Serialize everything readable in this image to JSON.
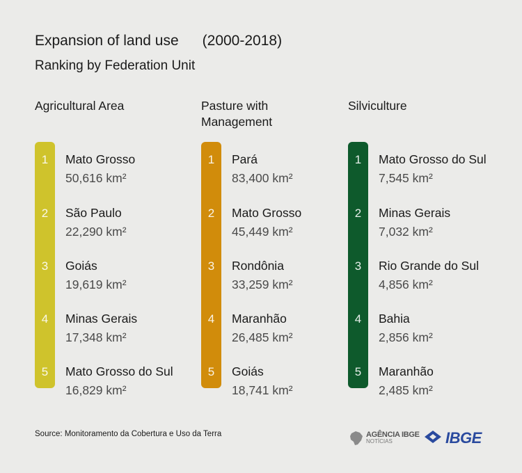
{
  "title": "Expansion of land use",
  "period": "(2000-2018)",
  "subtitle": "Ranking by Federation Unit",
  "chart_data": {
    "type": "table",
    "title": "Expansion of land use (2000-2018)",
    "subtitle": "Ranking by Federation Unit",
    "columns": [
      {
        "heading_lines": [
          "Agricultural Area"
        ],
        "color": "#cfc32c",
        "items": [
          {
            "rank": "1",
            "name": "Mato Grosso",
            "value": 50616,
            "value_text": "50,616 km²"
          },
          {
            "rank": "2",
            "name": "São Paulo",
            "value": 22290,
            "value_text": "22,290 km²"
          },
          {
            "rank": "3",
            "name": "Goiás",
            "value": 19619,
            "value_text": "19,619 km²"
          },
          {
            "rank": "4",
            "name": "Minas Gerais",
            "value": 17348,
            "value_text": "17,348 km²"
          },
          {
            "rank": "5",
            "name": "Mato Grosso do Sul",
            "value": 16829,
            "value_text": "16,829 km²"
          }
        ]
      },
      {
        "heading_lines": [
          "Pasture with",
          "Management"
        ],
        "color": "#d18c0b",
        "items": [
          {
            "rank": "1",
            "name": "Pará",
            "value": 83400,
            "value_text": "83,400 km²"
          },
          {
            "rank": "2",
            "name": "Mato Grosso",
            "value": 45449,
            "value_text": "45,449 km²"
          },
          {
            "rank": "3",
            "name": "Rondônia",
            "value": 33259,
            "value_text": "33,259 km²"
          },
          {
            "rank": "4",
            "name": "Maranhão",
            "value": 26485,
            "value_text": "26,485 km²"
          },
          {
            "rank": "5",
            "name": "Goiás",
            "value": 18741,
            "value_text": "18,741 km²"
          }
        ]
      },
      {
        "heading_lines": [
          "Silviculture"
        ],
        "color": "#0e5a2c",
        "items": [
          {
            "rank": "1",
            "name": "Mato Grosso do Sul",
            "value": 7545,
            "value_text": "7,545 km²"
          },
          {
            "rank": "2",
            "name": "Minas Gerais",
            "value": 7032,
            "value_text": "7,032 km²"
          },
          {
            "rank": "3",
            "name": "Rio Grande do Sul",
            "value": 4856,
            "value_text": "4,856 km²"
          },
          {
            "rank": "4",
            "name": "Bahia",
            "value": 2856,
            "value_text": "2,856 km²"
          },
          {
            "rank": "5",
            "name": "Maranhão",
            "value": 2485,
            "value_text": "2,485 km²"
          }
        ]
      }
    ]
  },
  "footer": {
    "source": "Source: Monitoramento da Cobertura e Uso da Terra",
    "logo_agencia_line1": "AGÊNCIA IBGE",
    "logo_agencia_line2": "NOTÍCIAS",
    "logo_ibge": "IBGE",
    "logo_ibge_color": "#2a4a9e"
  }
}
